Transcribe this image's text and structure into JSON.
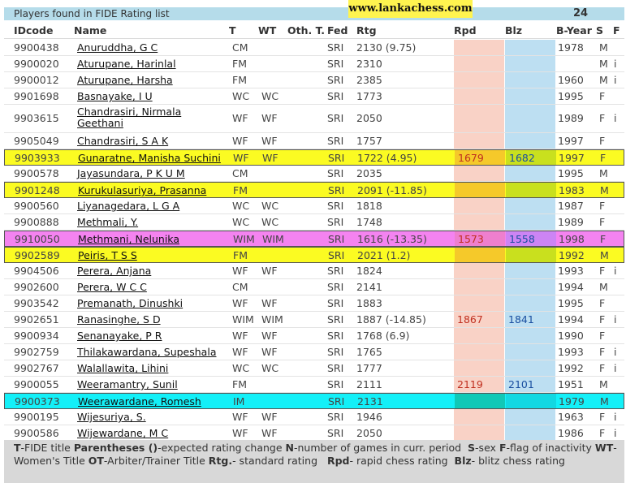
{
  "header": {
    "title": "Players found in FIDE Rating list",
    "count": "24",
    "watermark": "www.lankachess.com"
  },
  "columns": [
    "IDcode",
    "Name",
    "T",
    "WT",
    "Oth. T.",
    "Fed",
    "Rtg",
    "Rpd",
    "Blz",
    "B-Year",
    "S",
    "F"
  ],
  "rows": [
    {
      "id": "9900438",
      "name": "Anuruddha, G C",
      "t": "CM",
      "wt": "",
      "fed": "SRI",
      "rtg": "2130 (9.75)",
      "rpd": "",
      "blz": "",
      "byear": "1978",
      "s": "M",
      "f": ""
    },
    {
      "id": "9900020",
      "name": "Aturupane, Harinlal",
      "t": "FM",
      "wt": "",
      "fed": "SRI",
      "rtg": "2310",
      "rpd": "",
      "blz": "",
      "byear": "",
      "s": "M",
      "f": "i"
    },
    {
      "id": "9900012",
      "name": "Aturupane, Harsha",
      "t": "FM",
      "wt": "",
      "fed": "SRI",
      "rtg": "2385",
      "rpd": "",
      "blz": "",
      "byear": "1960",
      "s": "M",
      "f": "i"
    },
    {
      "id": "9901698",
      "name": "Basnayake, I U",
      "t": "WC",
      "wt": "WC",
      "fed": "SRI",
      "rtg": "1773",
      "rpd": "",
      "blz": "",
      "byear": "1995",
      "s": "F",
      "f": ""
    },
    {
      "id": "9903615",
      "name": "Chandrasiri, Nirmala Geethani",
      "t": "WF",
      "wt": "WF",
      "fed": "SRI",
      "rtg": "2050",
      "rpd": "",
      "blz": "",
      "byear": "1989",
      "s": "F",
      "f": "i"
    },
    {
      "id": "9905049",
      "name": "Chandrasiri, S A K",
      "t": "WF",
      "wt": "WF",
      "fed": "SRI",
      "rtg": "1757",
      "rpd": "",
      "blz": "",
      "byear": "1997",
      "s": "F",
      "f": ""
    },
    {
      "id": "9903933",
      "name": "Gunaratne, Manisha Suchini",
      "t": "WF",
      "wt": "WF",
      "fed": "SRI",
      "rtg": "1722 (4.95)",
      "rpd": "1679",
      "blz": "1682",
      "byear": "1997",
      "s": "F",
      "f": ""
    },
    {
      "id": "9900578",
      "name": "Jayasundara, P K U M",
      "t": "CM",
      "wt": "",
      "fed": "SRI",
      "rtg": "2035",
      "rpd": "",
      "blz": "",
      "byear": "1995",
      "s": "M",
      "f": ""
    },
    {
      "id": "9901248",
      "name": "Kurukulasuriya, Prasanna",
      "t": "FM",
      "wt": "",
      "fed": "SRI",
      "rtg": "2091 (-11.85)",
      "rpd": "",
      "blz": "",
      "byear": "1983",
      "s": "M",
      "f": ""
    },
    {
      "id": "9900560",
      "name": "Liyanagedara, L G A",
      "t": "WC",
      "wt": "WC",
      "fed": "SRI",
      "rtg": "1818",
      "rpd": "",
      "blz": "",
      "byear": "1987",
      "s": "F",
      "f": ""
    },
    {
      "id": "9900888",
      "name": "Methmali, Y.",
      "t": "WC",
      "wt": "WC",
      "fed": "SRI",
      "rtg": "1748",
      "rpd": "",
      "blz": "",
      "byear": "1989",
      "s": "F",
      "f": ""
    },
    {
      "id": "9910050",
      "name": "Methmani, Nelunika",
      "t": "WIM",
      "wt": "WIM",
      "fed": "SRI",
      "rtg": "1616 (-13.35)",
      "rpd": "1573",
      "blz": "1558",
      "byear": "1998",
      "s": "F",
      "f": ""
    },
    {
      "id": "9902589",
      "name": "Peiris, T S S",
      "t": "FM",
      "wt": "",
      "fed": "SRI",
      "rtg": "2021 (1.2)",
      "rpd": "",
      "blz": "",
      "byear": "1992",
      "s": "M",
      "f": ""
    },
    {
      "id": "9904506",
      "name": "Perera, Anjana",
      "t": "WF",
      "wt": "WF",
      "fed": "SRI",
      "rtg": "1824",
      "rpd": "",
      "blz": "",
      "byear": "1993",
      "s": "F",
      "f": "i"
    },
    {
      "id": "9902600",
      "name": "Perera, W C C",
      "t": "CM",
      "wt": "",
      "fed": "SRI",
      "rtg": "2141",
      "rpd": "",
      "blz": "",
      "byear": "1994",
      "s": "M",
      "f": ""
    },
    {
      "id": "9903542",
      "name": "Premanath, Dinushki",
      "t": "WF",
      "wt": "WF",
      "fed": "SRI",
      "rtg": "1883",
      "rpd": "",
      "blz": "",
      "byear": "1995",
      "s": "F",
      "f": ""
    },
    {
      "id": "9902651",
      "name": "Ranasinghe, S D",
      "t": "WIM",
      "wt": "WIM",
      "fed": "SRI",
      "rtg": "1887 (-14.85)",
      "rpd": "1867",
      "blz": "1841",
      "byear": "1994",
      "s": "F",
      "f": "i"
    },
    {
      "id": "9900934",
      "name": "Senanayake, P R",
      "t": "WF",
      "wt": "WF",
      "fed": "SRI",
      "rtg": "1768 (6.9)",
      "rpd": "",
      "blz": "",
      "byear": "1990",
      "s": "F",
      "f": ""
    },
    {
      "id": "9902759",
      "name": "Thilakawardana, Supeshala",
      "t": "WF",
      "wt": "WF",
      "fed": "SRI",
      "rtg": "1765",
      "rpd": "",
      "blz": "",
      "byear": "1993",
      "s": "F",
      "f": "i"
    },
    {
      "id": "9902767",
      "name": "Walallawita, Lihini",
      "t": "WC",
      "wt": "WC",
      "fed": "SRI",
      "rtg": "1777",
      "rpd": "",
      "blz": "",
      "byear": "1992",
      "s": "F",
      "f": "i"
    },
    {
      "id": "9900055",
      "name": "Weeramantry, Sunil",
      "t": "FM",
      "wt": "",
      "fed": "SRI",
      "rtg": "2111",
      "rpd": "2119",
      "blz": "2101",
      "byear": "1951",
      "s": "M",
      "f": ""
    },
    {
      "id": "9900373",
      "name": "Weerawardane, Romesh",
      "t": "IM",
      "wt": "",
      "fed": "SRI",
      "rtg": "2131",
      "rpd": "",
      "blz": "",
      "byear": "1979",
      "s": "M",
      "f": ""
    },
    {
      "id": "9900195",
      "name": "Wijesuriya, S.",
      "t": "WF",
      "wt": "WF",
      "fed": "SRI",
      "rtg": "1946",
      "rpd": "",
      "blz": "",
      "byear": "1963",
      "s": "F",
      "f": "i"
    },
    {
      "id": "9900586",
      "name": "Wijewardane, M C",
      "t": "WF",
      "wt": "WF",
      "fed": "SRI",
      "rtg": "2050",
      "rpd": "",
      "blz": "",
      "byear": "1986",
      "s": "F",
      "f": "i"
    }
  ],
  "highlights": {
    "yellow": [
      "9903933",
      "9901248",
      "9902589"
    ],
    "pink": [
      "9910050"
    ],
    "cyan": [
      "9900373"
    ]
  },
  "colors": {
    "header_bg": "#b5dcea",
    "rpd_bg": "#f9d2c6",
    "blz_bg": "#bddff2",
    "yellow": "#fbfb22",
    "pink": "#f483f0",
    "cyan": "#13f0f8"
  },
  "legend": {
    "t_key": "T",
    "t_text": "-FIDE title",
    "par_key": "Parentheses ()",
    "par_text": "-expected rating change",
    "n_key": "N",
    "n_text": "-number of games in curr. period",
    "s_key": "S",
    "s_text": "-sex",
    "f_key": "F",
    "f_text": "-flag of inactivity",
    "wt_key": "WT",
    "wt_text": "-Women's Title",
    "ot_key": "OT",
    "ot_text": "-Arbiter/Trainer Title",
    "rtg_key": "Rtg.",
    "rtg_text": "- standard rating",
    "rpd_key": "Rpd",
    "rpd_text": "- rapid chess rating",
    "blz_key": "Blz",
    "blz_text": "- blitz chess rating"
  }
}
